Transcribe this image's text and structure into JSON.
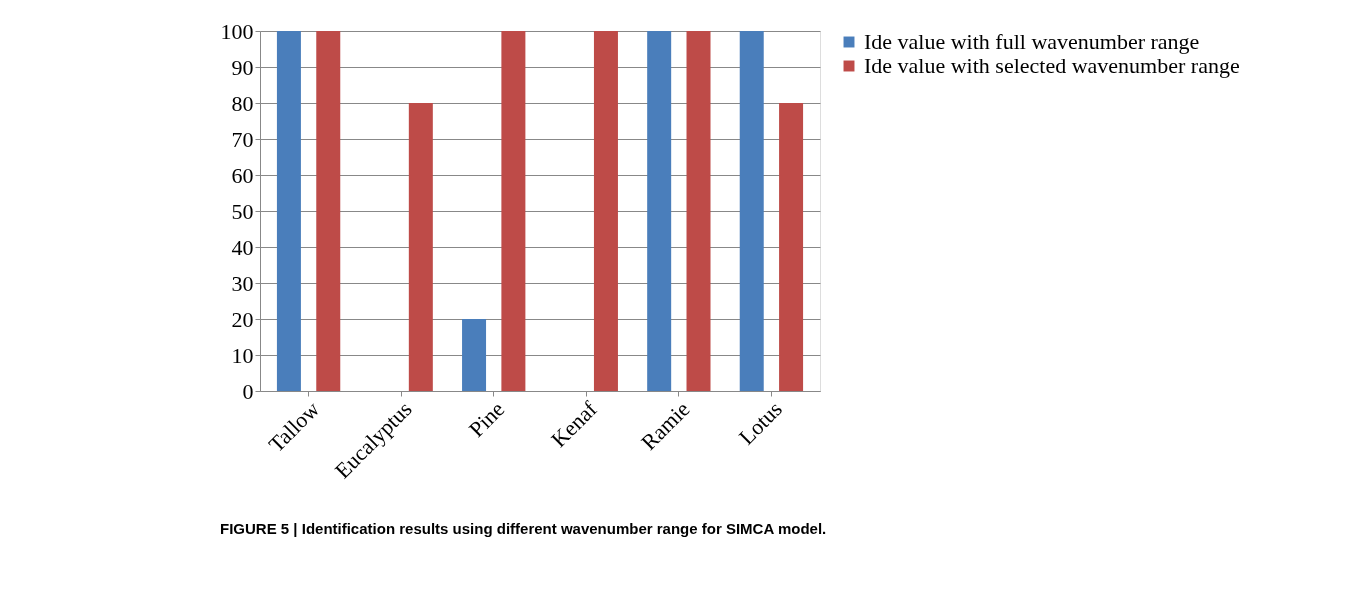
{
  "chart_data": {
    "type": "bar",
    "categories": [
      "Tallow",
      "Eucalyptus",
      "Pine",
      "Kenaf",
      "Ramie",
      "Lotus"
    ],
    "series": [
      {
        "name": "Ide value with full wavenumber range",
        "color": "#4a7ebb",
        "values": [
          100,
          0,
          20,
          0,
          100,
          100
        ]
      },
      {
        "name": "Ide value with selected wavenumber range",
        "color": "#be4b48",
        "values": [
          100,
          80,
          100,
          100,
          100,
          80
        ]
      }
    ],
    "ylim": [
      0,
      100
    ],
    "yticks": [
      0,
      10,
      20,
      30,
      40,
      50,
      60,
      70,
      80,
      90,
      100
    ],
    "grid": "y",
    "legend": "right",
    "annotations": [
      "FIGURE 5 | Identification results using different wavenumber range for SIMCA model."
    ]
  }
}
